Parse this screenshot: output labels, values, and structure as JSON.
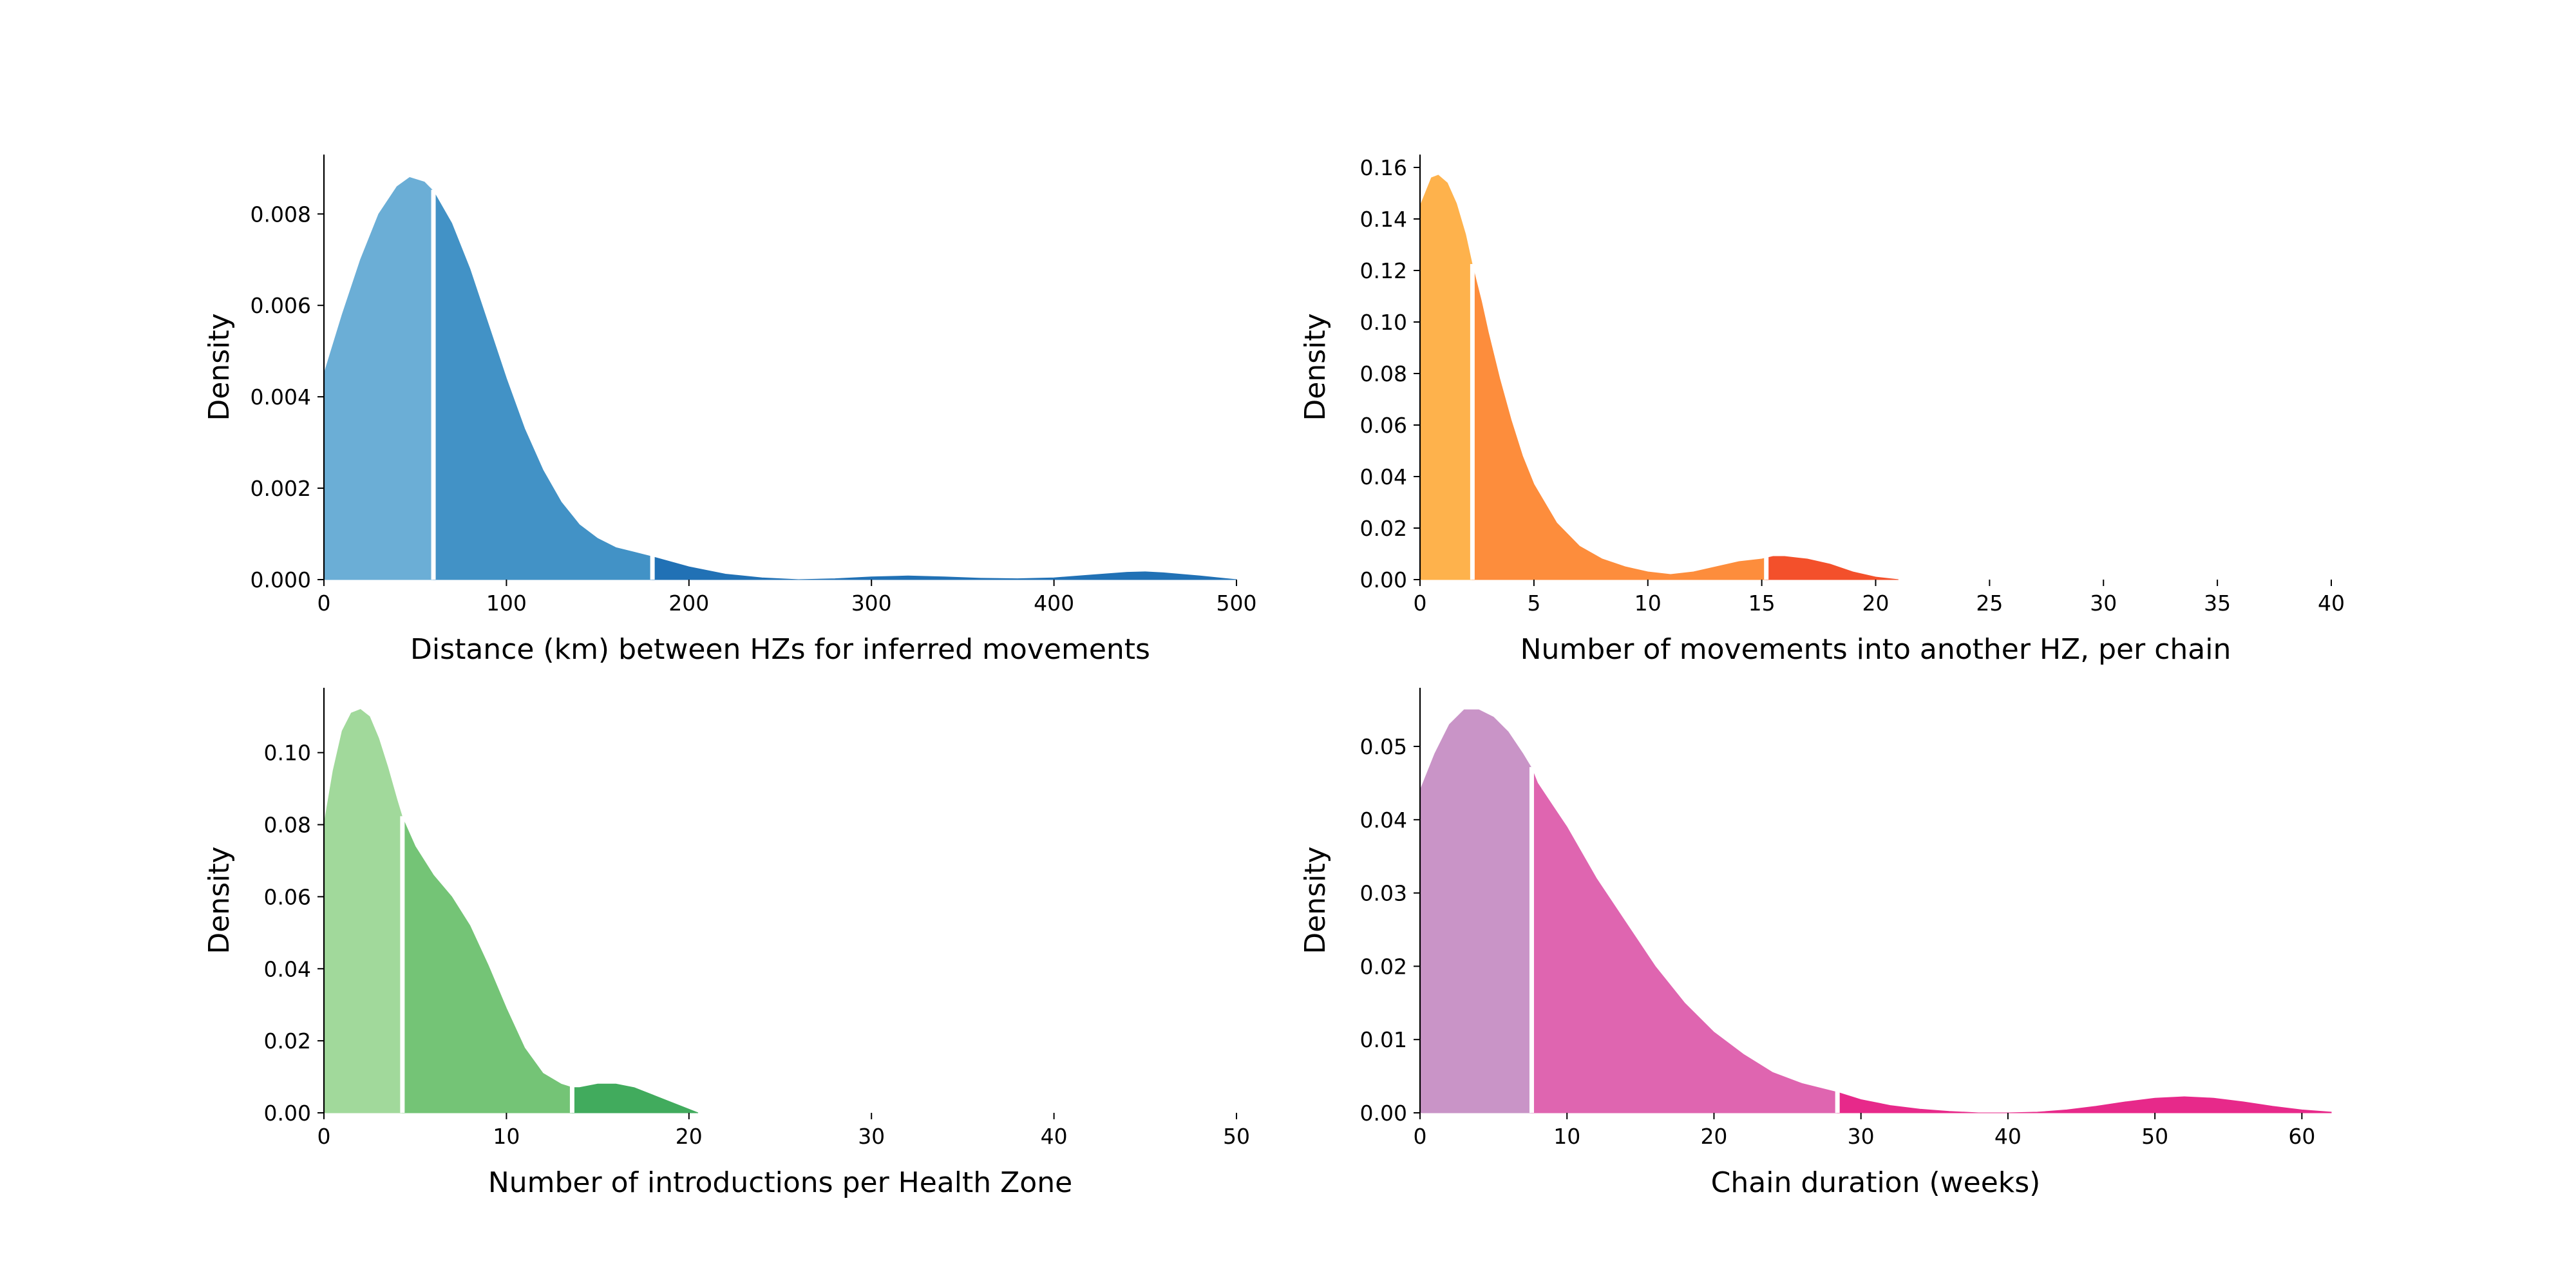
{
  "chart_data": [
    {
      "type": "area",
      "panel": "top-left",
      "xlabel": "Distance (km) between HZs for inferred movements",
      "ylabel": "Density",
      "xlim": [
        0,
        500
      ],
      "ylim": [
        0,
        0.0093
      ],
      "xticks": [
        0,
        100,
        200,
        300,
        400,
        500
      ],
      "yticks": [
        0.0,
        0.002,
        0.004,
        0.006,
        0.008
      ],
      "ytick_labels": [
        "0.000",
        "0.002",
        "0.004",
        "0.006",
        "0.008"
      ],
      "density_x": [
        0,
        10,
        20,
        30,
        40,
        47,
        55,
        60,
        70,
        80,
        90,
        100,
        110,
        120,
        130,
        140,
        150,
        160,
        170,
        180,
        200,
        220,
        240,
        260,
        280,
        300,
        320,
        340,
        360,
        380,
        400,
        420,
        440,
        450,
        460,
        480,
        500
      ],
      "density_y": [
        0.0045,
        0.0058,
        0.007,
        0.008,
        0.0086,
        0.0088,
        0.0087,
        0.0085,
        0.0078,
        0.0068,
        0.0056,
        0.0044,
        0.0033,
        0.0024,
        0.0017,
        0.0012,
        0.0009,
        0.0007,
        0.0006,
        0.0005,
        0.00028,
        0.00012,
        4e-05,
        0.0,
        2e-05,
        6e-05,
        8e-05,
        6e-05,
        3e-05,
        2e-05,
        4e-05,
        0.0001,
        0.00016,
        0.00017,
        0.00015,
        8e-05,
        0.0
      ],
      "quartile_splits": [
        60,
        180
      ],
      "segment_colors": [
        "#6baed6",
        "#4292c6",
        "#2171b5"
      ]
    },
    {
      "type": "area",
      "panel": "top-right",
      "xlabel": "Number of movements into another HZ, per chain",
      "ylabel": "Density",
      "xlim": [
        0,
        40
      ],
      "ylim": [
        0,
        0.165
      ],
      "xticks": [
        0,
        5,
        10,
        15,
        20,
        25,
        30,
        35,
        40
      ],
      "yticks": [
        0.0,
        0.02,
        0.04,
        0.06,
        0.08,
        0.1,
        0.12,
        0.14,
        0.16
      ],
      "ytick_labels": [
        "0.00",
        "0.02",
        "0.04",
        "0.06",
        "0.08",
        "0.10",
        "0.12",
        "0.14",
        "0.16"
      ],
      "density_x": [
        0,
        0.5,
        0.8,
        1.2,
        1.6,
        2.0,
        2.3,
        2.7,
        3.0,
        3.5,
        4.0,
        4.5,
        5,
        6,
        7,
        8,
        9,
        10,
        11,
        12,
        13,
        14,
        15,
        15.5,
        16,
        17,
        18,
        19,
        20,
        21
      ],
      "density_y": [
        0.145,
        0.156,
        0.157,
        0.154,
        0.146,
        0.134,
        0.122,
        0.108,
        0.096,
        0.078,
        0.062,
        0.048,
        0.037,
        0.022,
        0.013,
        0.008,
        0.005,
        0.003,
        0.002,
        0.003,
        0.005,
        0.007,
        0.008,
        0.009,
        0.009,
        0.008,
        0.006,
        0.003,
        0.001,
        0.0
      ],
      "quartile_splits": [
        2.3,
        15.2
      ],
      "segment_colors": [
        "#feb24c",
        "#fd8d3c",
        "#f3502b"
      ]
    },
    {
      "type": "area",
      "panel": "bottom-left",
      "xlabel": "Number of introductions per Health Zone",
      "ylabel": "Density",
      "xlim": [
        0,
        50
      ],
      "ylim": [
        0,
        0.118
      ],
      "xticks": [
        0,
        10,
        20,
        30,
        40,
        50
      ],
      "yticks": [
        0.0,
        0.02,
        0.04,
        0.06,
        0.08,
        0.1
      ],
      "ytick_labels": [
        "0.00",
        "0.02",
        "0.04",
        "0.06",
        "0.08",
        "0.10"
      ],
      "density_x": [
        0,
        0.5,
        1,
        1.5,
        2,
        2.5,
        3,
        3.5,
        4,
        4.3,
        5,
        6,
        7,
        8,
        9,
        10,
        11,
        12,
        13,
        13.6,
        14,
        15,
        16,
        17,
        18,
        19,
        20,
        20.5
      ],
      "density_y": [
        0.08,
        0.095,
        0.106,
        0.111,
        0.112,
        0.11,
        0.104,
        0.096,
        0.087,
        0.082,
        0.074,
        0.066,
        0.06,
        0.052,
        0.041,
        0.029,
        0.018,
        0.011,
        0.008,
        0.007,
        0.007,
        0.008,
        0.008,
        0.007,
        0.005,
        0.003,
        0.001,
        0.0
      ],
      "quartile_splits": [
        4.3,
        13.6
      ],
      "segment_colors": [
        "#a1d99b",
        "#74c476",
        "#41ab5d"
      ]
    },
    {
      "type": "area",
      "panel": "bottom-right",
      "xlabel": "Chain duration (weeks)",
      "ylabel": "Density",
      "xlim": [
        0,
        62
      ],
      "ylim": [
        0,
        0.058
      ],
      "xticks": [
        0,
        10,
        20,
        30,
        40,
        50,
        60
      ],
      "yticks": [
        0.0,
        0.01,
        0.02,
        0.03,
        0.04,
        0.05
      ],
      "ytick_labels": [
        "0.00",
        "0.01",
        "0.02",
        "0.03",
        "0.04",
        "0.05"
      ],
      "density_x": [
        0,
        1,
        2,
        3,
        4,
        5,
        6,
        7,
        7.6,
        8,
        9,
        10,
        12,
        14,
        16,
        18,
        20,
        22,
        24,
        26,
        28,
        28.4,
        30,
        32,
        34,
        36,
        38,
        40,
        42,
        44,
        46,
        48,
        50,
        52,
        54,
        56,
        58,
        60,
        62
      ],
      "density_y": [
        0.044,
        0.049,
        0.053,
        0.055,
        0.055,
        0.054,
        0.052,
        0.049,
        0.047,
        0.045,
        0.042,
        0.039,
        0.032,
        0.026,
        0.02,
        0.015,
        0.011,
        0.008,
        0.0055,
        0.004,
        0.003,
        0.0028,
        0.0018,
        0.001,
        0.0005,
        0.0002,
        0.0,
        0.0,
        0.0001,
        0.0004,
        0.0009,
        0.0015,
        0.002,
        0.0022,
        0.002,
        0.0015,
        0.0009,
        0.0004,
        0.0001
      ],
      "quartile_splits": [
        7.6,
        28.4
      ],
      "segment_colors": [
        "#c994c7",
        "#df65b0",
        "#e7298a"
      ]
    }
  ]
}
